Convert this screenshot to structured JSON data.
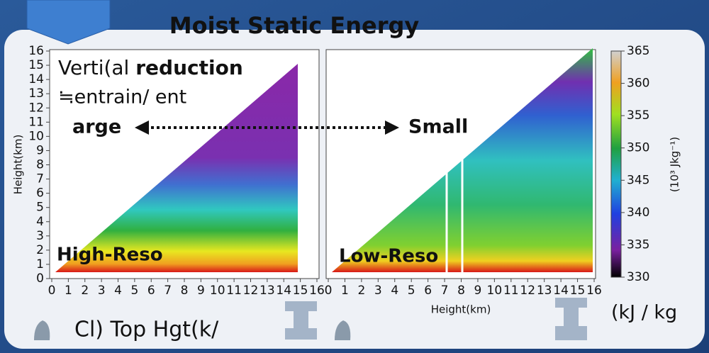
{
  "title": "Moist Static Energy",
  "annotation": {
    "line1_normal": "Verti(al ",
    "line1_bold": "reduction",
    "line2": "≒entrain/ ent",
    "left": "arge",
    "right": "Small"
  },
  "panels": [
    {
      "label": "High-Reso",
      "y_axis_label": "Height(km)"
    },
    {
      "label": "Low-Reso",
      "x_axis_label": "Height(km)"
    }
  ],
  "x_ticks": [
    0,
    1,
    2,
    3,
    4,
    5,
    6,
    7,
    8,
    9,
    10,
    11,
    12,
    13,
    14,
    15,
    16
  ],
  "y_ticks": [
    0,
    1,
    2,
    3,
    4,
    5,
    6,
    7,
    8,
    9,
    10,
    11,
    12,
    13,
    14,
    15,
    16
  ],
  "colorbar": {
    "ticks": [
      330,
      335,
      340,
      345,
      350,
      355,
      360,
      365
    ],
    "label": "(10³ Jkg⁻¹)"
  },
  "footer": {
    "left": "Cl) Top Hgt(k/",
    "right": "(kJ / kg"
  }
}
